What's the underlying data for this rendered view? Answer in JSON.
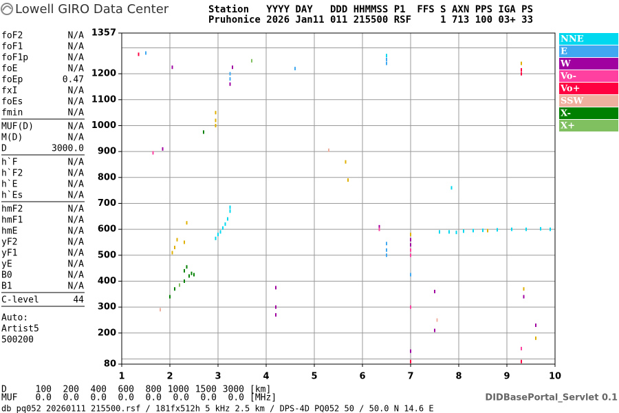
{
  "header": {
    "title": "Lowell GIRO Data Center",
    "line1": "Station   YYYY DAY   DDD HHMMSS P1  FFS S AXN PPS IGA PS",
    "line2": "Pruhonice 2026 Jan11 011 215500 RSF     1 713 100 03+ 33"
  },
  "parameters": [
    [
      {
        "name": "foF2",
        "value": "N/A"
      },
      {
        "name": "foF1",
        "value": "N/A"
      },
      {
        "name": "foF1p",
        "value": "N/A"
      },
      {
        "name": "foE",
        "value": "N/A"
      },
      {
        "name": "foEp",
        "value": "0.47"
      },
      {
        "name": "fxI",
        "value": "N/A"
      },
      {
        "name": "foEs",
        "value": "N/A"
      },
      {
        "name": "fmin",
        "value": "N/A"
      }
    ],
    [
      {
        "name": "MUF(D)",
        "value": "N/A"
      },
      {
        "name": "M(D)",
        "value": "N/A"
      },
      {
        "name": "D",
        "value": "3000.0"
      }
    ],
    [
      {
        "name": "h`F",
        "value": "N/A"
      },
      {
        "name": "h`F2",
        "value": "N/A"
      },
      {
        "name": "h`E",
        "value": "N/A"
      },
      {
        "name": "h`Es",
        "value": "N/A"
      }
    ],
    [
      {
        "name": "hmF2",
        "value": "N/A"
      },
      {
        "name": "hmF1",
        "value": "N/A"
      },
      {
        "name": "hmE",
        "value": "N/A"
      },
      {
        "name": "yF2",
        "value": "N/A"
      },
      {
        "name": "yF1",
        "value": "N/A"
      },
      {
        "name": "yE",
        "value": "N/A"
      },
      {
        "name": "B0",
        "value": "N/A"
      },
      {
        "name": "B1",
        "value": "N/A"
      }
    ],
    [
      {
        "name": "C-level",
        "value": "44"
      }
    ]
  ],
  "autoscaling": [
    "Auto:",
    "Artist5",
    "500200"
  ],
  "muf_table": {
    "d_label": "D",
    "d_values": [
      "100",
      "200",
      "400",
      "600",
      "800",
      "1000",
      "1500",
      "3000"
    ],
    "d_unit": "[km]",
    "muf_label": "MUF",
    "muf_values": [
      "0.0",
      "0.0",
      "0.0",
      "0.0",
      "0.0",
      "0.0",
      "0.0",
      "0.0"
    ],
    "muf_unit": "[MHz]"
  },
  "footer": "db pq052 20260111 215500.rsf / 181fx512h 5 kHz 2.5 km / DPS-4D PQ052 50 / 50.0 N 14.6 E",
  "servlet": "DIDBasePortal_Servlet 0.1",
  "chart_data": {
    "type": "scatter",
    "xlim": [
      1,
      10
    ],
    "xticks": [
      1,
      2,
      3,
      4,
      5,
      6,
      7,
      8,
      9,
      10
    ],
    "ylim": [
      80,
      1357
    ],
    "yticks": [
      80,
      200,
      300,
      400,
      500,
      600,
      700,
      800,
      900,
      1000,
      1100,
      1200,
      1357
    ],
    "ygrid": [
      100,
      200,
      300,
      400,
      500,
      600,
      700,
      800,
      900,
      1000,
      1100,
      1200,
      1300
    ],
    "grid": true,
    "series": [
      {
        "name": "NNE",
        "color": "#00d8f0",
        "x": [
          2.95,
          3.0,
          3.05,
          3.1,
          3.15,
          3.2,
          3.25,
          3.25,
          7.6,
          7.8,
          7.95,
          8.1,
          8.3,
          8.5,
          8.8,
          9.1,
          9.4,
          9.7,
          9.9,
          7.85,
          6.5
        ],
        "y": [
          565,
          580,
          590,
          605,
          620,
          640,
          670,
          685,
          590,
          590,
          588,
          593,
          595,
          596,
          598,
          600,
          600,
          602,
          600,
          760,
          1270
        ]
      },
      {
        "name": "E",
        "color": "#40a8f0",
        "x": [
          6.5,
          6.5,
          6.5,
          6.5,
          6.5,
          3.25,
          3.25,
          1.5,
          4.6,
          7.0
        ],
        "y": [
          500,
          520,
          545,
          1240,
          1255,
          1200,
          1180,
          1280,
          1220,
          425
        ]
      },
      {
        "name": "W",
        "color": "#a000a0",
        "x": [
          4.2,
          4.2,
          4.2,
          7.0,
          7.0,
          7.0,
          7.5,
          6.35,
          9.35,
          9.6,
          3.25,
          1.85,
          2.05,
          3.3,
          7.5
        ],
        "y": [
          270,
          300,
          375,
          130,
          560,
          540,
          360,
          610,
          340,
          230,
          1160,
          910,
          1225,
          1225,
          210
        ]
      },
      {
        "name": "Vo-",
        "color": "#ff40a0",
        "x": [
          6.35,
          7.0,
          7.0,
          9.3,
          1.65,
          7.0
        ],
        "y": [
          600,
          500,
          520,
          140,
          895,
          300
        ]
      },
      {
        "name": "Vo+",
        "color": "#ff0040",
        "x": [
          9.3,
          9.3,
          1.35,
          9.3,
          7.0
        ],
        "y": [
          1200,
          1215,
          1275,
          90,
          90
        ]
      },
      {
        "name": "SSW",
        "color": "#f0b0a0",
        "x": [
          7.55,
          1.8,
          5.3
        ],
        "y": [
          250,
          290,
          905
        ]
      },
      {
        "name": "X-",
        "color": "#008000",
        "x": [
          2.0,
          2.1,
          2.3,
          2.3,
          2.35,
          2.4,
          2.45,
          2.5,
          2.7
        ],
        "y": [
          340,
          370,
          400,
          440,
          455,
          420,
          430,
          425,
          975
        ]
      },
      {
        "name": "X+",
        "color": "#80c060",
        "x": [
          2.2,
          3.7
        ],
        "y": [
          385,
          1250
        ]
      },
      {
        "color": "#e0b000",
        "x": [
          2.05,
          2.1,
          2.15,
          2.3,
          2.35,
          2.95,
          2.95,
          2.95,
          5.65,
          5.7,
          9.3,
          9.6,
          9.35,
          7.0,
          8.6
        ],
        "y": [
          510,
          530,
          560,
          550,
          625,
          1000,
          1020,
          1050,
          860,
          790,
          1240,
          180,
          370,
          580,
          595
        ]
      }
    ]
  }
}
